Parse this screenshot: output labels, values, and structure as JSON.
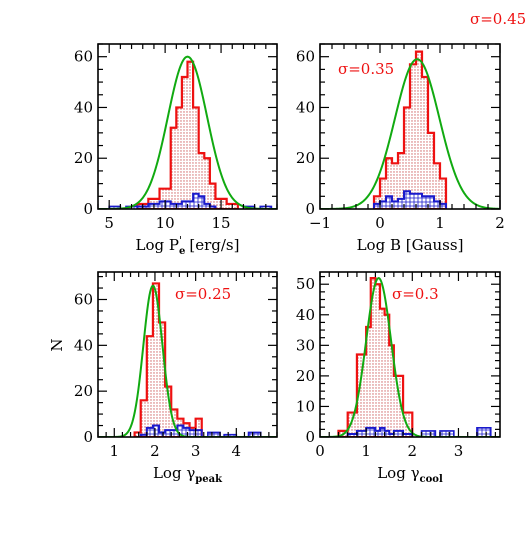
{
  "figure": {
    "ylabel": "N"
  },
  "chart_data": [
    {
      "type": "histogram",
      "panel": "top-left",
      "xlabel": "Log P",
      "xlabel_sub": "e",
      "xlabel_sup": "'",
      "xlabel_unit": "[erg/s]",
      "xlim": [
        4,
        20
      ],
      "ylim": [
        0,
        65
      ],
      "xticks": [
        5,
        10,
        15
      ],
      "yticks": [
        0,
        20,
        40,
        60
      ],
      "annotation": "σ=0.45",
      "edges": [
        7.5,
        8.5,
        9.5,
        10.5,
        11.0,
        11.5,
        12.0,
        12.5,
        13.0,
        13.5,
        14.0,
        14.5,
        15.5,
        16.5
      ],
      "all_counts": [
        2,
        4,
        8,
        32,
        40,
        52,
        58,
        40,
        22,
        20,
        10,
        4,
        2
      ],
      "sub_counts": [
        1,
        2,
        3,
        2,
        2,
        3,
        3,
        6,
        5,
        2,
        1,
        0,
        0
      ],
      "extra_steps": [
        [
          5,
          6,
          1
        ],
        [
          6.5,
          7.5,
          1
        ],
        [
          17,
          18,
          1
        ],
        [
          18.5,
          19.5,
          1
        ]
      ],
      "gaussian": {
        "mean": 12.0,
        "sigma": 1.75,
        "amp": 60
      }
    },
    {
      "type": "histogram",
      "panel": "top-right",
      "xlabel": "Log B [Gauss]",
      "xlim": [
        -1,
        2
      ],
      "ylim": [
        0,
        65
      ],
      "xticks": [
        -1,
        0,
        1,
        2
      ],
      "xtick_labels": [
        "−1",
        "0",
        "1",
        "2"
      ],
      "yticks": [
        0,
        20,
        40,
        60
      ],
      "annotation": "σ=0.35",
      "edges": [
        -0.1,
        0.0,
        0.1,
        0.2,
        0.3,
        0.4,
        0.5,
        0.6,
        0.7,
        0.8,
        0.9,
        1.0,
        1.1
      ],
      "all_counts": [
        5,
        12,
        20,
        18,
        22,
        40,
        57,
        62,
        52,
        30,
        18,
        12
      ],
      "sub_counts": [
        2,
        3,
        5,
        3,
        4,
        7,
        6,
        6,
        5,
        5,
        3,
        2
      ],
      "extra_steps": [],
      "gaussian": {
        "mean": 0.62,
        "sigma": 0.37,
        "amp": 59
      }
    },
    {
      "type": "histogram",
      "panel": "bottom-left",
      "xlabel": "Log γ",
      "xlabel_sub": "peak",
      "xlim": [
        0.6,
        5.0
      ],
      "ylim": [
        0,
        72
      ],
      "xticks": [
        1,
        2,
        3,
        4
      ],
      "yticks": [
        0,
        20,
        40,
        60
      ],
      "annotation": "σ=0.25",
      "edges": [
        1.5,
        1.65,
        1.8,
        1.95,
        2.1,
        2.25,
        2.4,
        2.55,
        2.7,
        2.85,
        3.0,
        3.15
      ],
      "all_counts": [
        2,
        16,
        44,
        67,
        50,
        22,
        12,
        8,
        6,
        4,
        8
      ],
      "sub_counts": [
        0,
        1,
        4,
        5,
        2,
        3,
        3,
        5,
        4,
        3,
        3
      ],
      "extra_steps": [
        [
          3.3,
          3.6,
          2
        ],
        [
          3.7,
          4.0,
          1
        ],
        [
          4.3,
          4.6,
          2
        ]
      ],
      "gaussian": {
        "mean": 1.95,
        "sigma": 0.235,
        "amp": 66
      }
    },
    {
      "type": "histogram",
      "panel": "bottom-right",
      "xlabel": "Log γ",
      "xlabel_sub": "cool",
      "xlim": [
        0,
        3.9
      ],
      "ylim": [
        0,
        54
      ],
      "xticks": [
        0,
        1,
        2,
        3
      ],
      "yticks": [
        0,
        10,
        20,
        30,
        40,
        50
      ],
      "annotation": "σ=0.3",
      "edges": [
        0.4,
        0.6,
        0.8,
        1.0,
        1.1,
        1.2,
        1.3,
        1.4,
        1.5,
        1.6,
        1.8,
        2.0
      ],
      "all_counts": [
        2,
        8,
        27,
        36,
        52,
        50,
        42,
        40,
        30,
        20,
        8
      ],
      "sub_counts": [
        0,
        1,
        2,
        3,
        3,
        2,
        3,
        2,
        1,
        2,
        1
      ],
      "extra_steps": [
        [
          2.2,
          2.5,
          2
        ],
        [
          2.6,
          2.9,
          2
        ],
        [
          3.4,
          3.7,
          3
        ]
      ],
      "gaussian": {
        "mean": 1.27,
        "sigma": 0.27,
        "amp": 52
      }
    }
  ],
  "colors": {
    "all": "#ee1111",
    "sub": "#1a1acc",
    "fit": "#11aa11",
    "fill": "#e8a0a0"
  }
}
